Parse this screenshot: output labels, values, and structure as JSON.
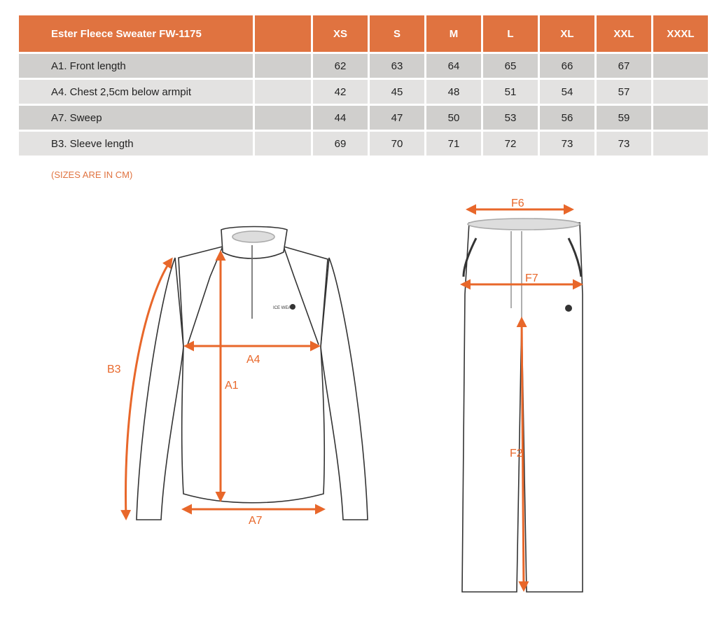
{
  "table": {
    "title": "Ester Fleece Sweater FW-1175",
    "sizes": [
      "XS",
      "S",
      "M",
      "L",
      "XL",
      "XXL",
      "XXXL"
    ],
    "rows": [
      {
        "label": "A1. Front length",
        "values": [
          "62",
          "63",
          "64",
          "65",
          "66",
          "67",
          ""
        ]
      },
      {
        "label": "A4. Chest 2,5cm below armpit",
        "values": [
          "42",
          "45",
          "48",
          "51",
          "54",
          "57",
          ""
        ]
      },
      {
        "label": "A7. Sweep",
        "values": [
          "44",
          "47",
          "50",
          "53",
          "56",
          "59",
          ""
        ]
      },
      {
        "label": "B3. Sleeve length",
        "values": [
          "69",
          "70",
          "71",
          "72",
          "73",
          "73",
          ""
        ]
      }
    ]
  },
  "note": "(SIZES ARE IN CM)",
  "diagram": {
    "sweater_labels": {
      "a1": "A1",
      "a4": "A4",
      "a7": "A7",
      "b3": "B3"
    },
    "pants_labels": {
      "f6": "F6",
      "f7": "F7",
      "f2": "F2"
    },
    "logo_text": "ICE WEAR",
    "accent_color": "#E8672A",
    "header_color": "#E07340"
  }
}
